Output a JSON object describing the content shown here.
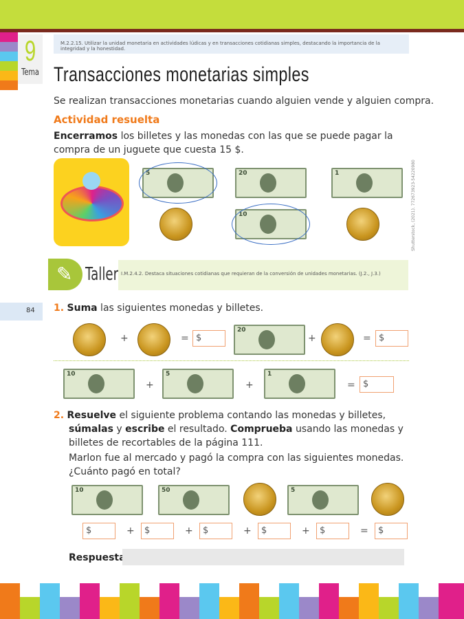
{
  "header": {
    "tema_number": "9",
    "tema_label": "Tema",
    "standard": "M.2.2.15. Utilizar la unidad monetaria en actividades lúdicas y en transacciones cotidianas simples, destacando la importancia de la integridad y la honestidad.",
    "title": "Transacciones monetarias simples"
  },
  "intro": "Se realizan transacciones monetarias cuando alguien vende y alguien compra.",
  "activity": {
    "heading": "Actividad resuelta",
    "verb": "Encerramos",
    "text": " los billetes y las monedas con las que se puede pagar la compra de un juguete que cuesta 15 $.",
    "bills": [
      "5",
      "20",
      "1",
      "10"
    ],
    "credit": "Shutterstock, (2021). 772673923-54220980"
  },
  "taller": {
    "label": "Taller",
    "indicator": "I.M.2.4.2. Destaca situaciones cotidianas que requieran de la conversión de unidades monetarias. (J.2., J.3.)"
  },
  "page_number": "84",
  "q1": {
    "num": "1.",
    "verb": "Suma",
    "text": " las siguientes monedas y billetes.",
    "row1_bill": "20",
    "row2_bills": [
      "10",
      "5",
      "1"
    ]
  },
  "q2": {
    "num": "2.",
    "v1": "Resuelve",
    "t1": " el siguiente problema contando las monedas y billetes, ",
    "v2": "súmalas",
    "t2": " y ",
    "v3": "escribe",
    "t3": " el resultado. ",
    "v4": "Comprueba",
    "t4": " usando las monedas y billetes de recortables de la página 111.",
    "problem": "Marlon fue al mercado y pagó la compra con las siguientes monedas. ¿Cuánto pagó en total?",
    "bills": [
      "10",
      "50",
      "5"
    ],
    "answer_label": "Respuesta:"
  },
  "symbols": {
    "plus": "+",
    "equals": "=",
    "dollar": "$"
  }
}
